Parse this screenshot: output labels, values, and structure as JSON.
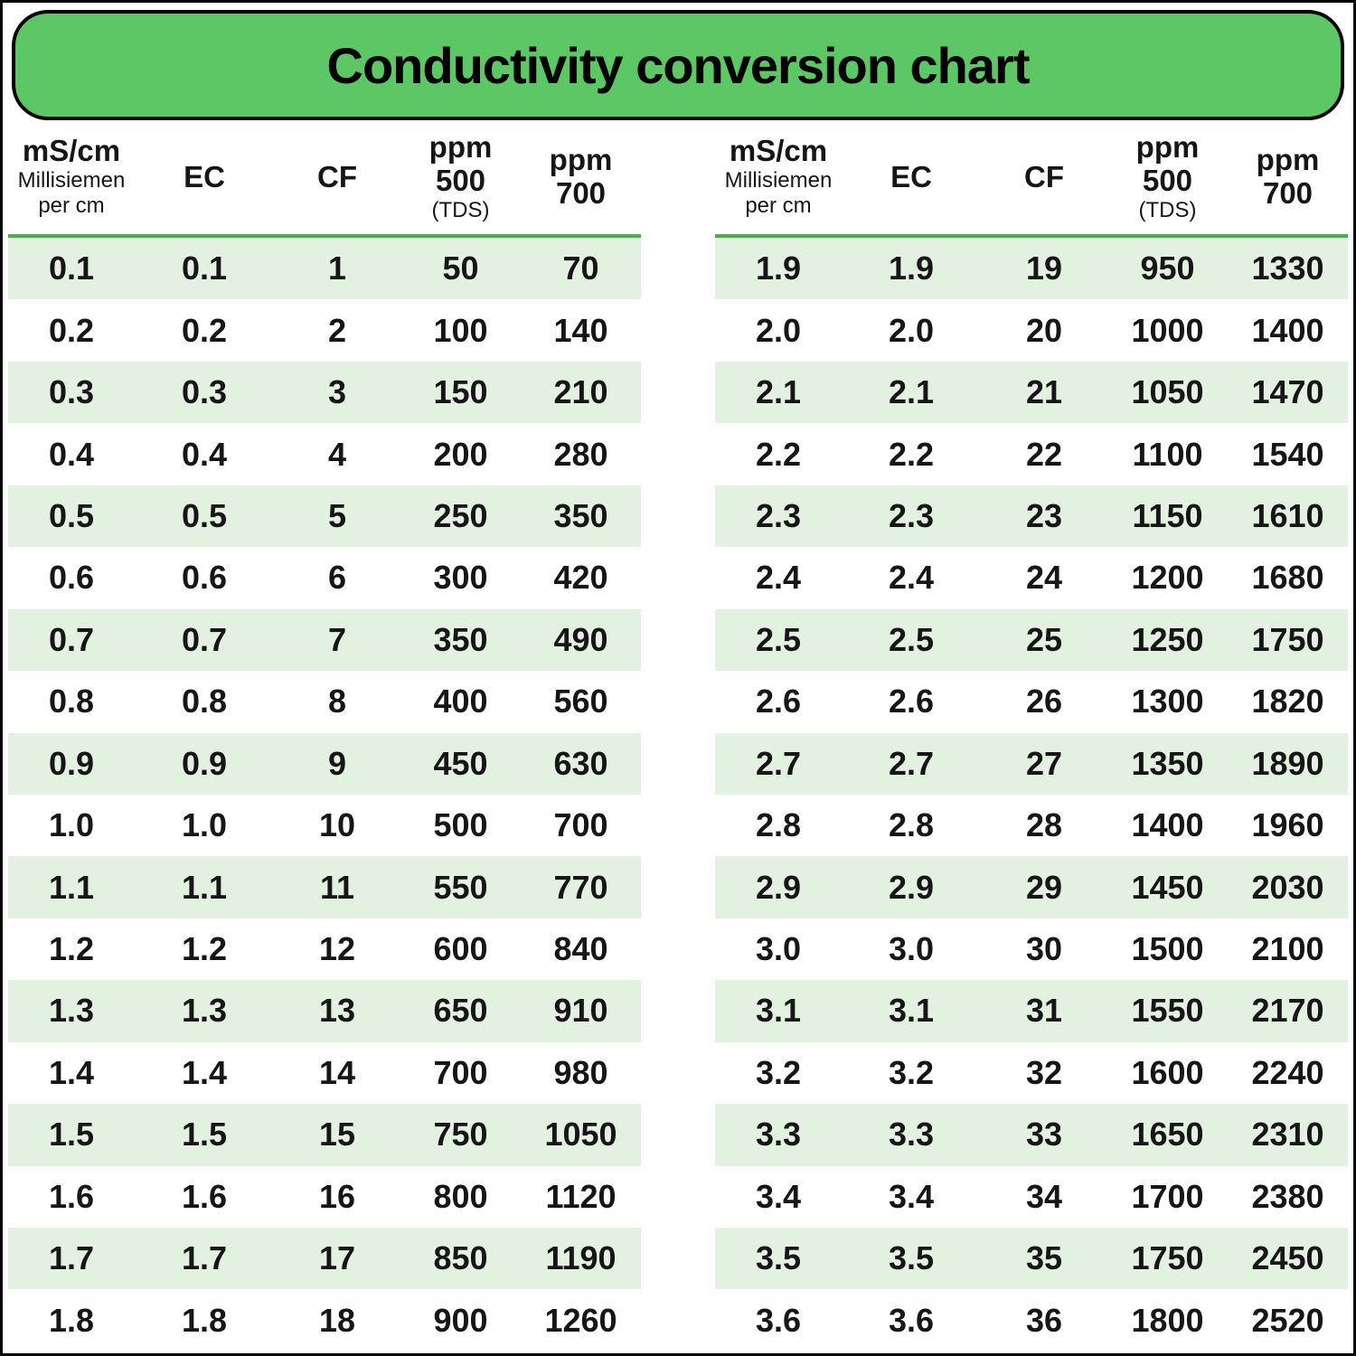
{
  "title": "Conductivity conversion chart",
  "colors": {
    "banner_green": "#5cc764",
    "divider_green": "#4caf50",
    "row_green": "#e3f1e1",
    "text": "#161616"
  },
  "header_columns": [
    {
      "bold_lines": [
        "mS/cm"
      ],
      "small_lines": [
        "Millisiemen",
        "per cm"
      ]
    },
    {
      "bold_lines": [
        "EC"
      ],
      "small_lines": []
    },
    {
      "bold_lines": [
        "CF"
      ],
      "small_lines": []
    },
    {
      "bold_lines": [
        "ppm",
        "500"
      ],
      "small_lines": [
        "(TDS)"
      ]
    },
    {
      "bold_lines": [
        "ppm",
        "700"
      ],
      "small_lines": []
    }
  ],
  "chart_data": {
    "type": "table",
    "title": "Conductivity conversion chart",
    "columns": [
      "mS/cm (Millisiemen per cm)",
      "EC",
      "CF",
      "ppm 500 (TDS)",
      "ppm 700"
    ],
    "tables": [
      {
        "rows": [
          [
            "0.1",
            "0.1",
            "1",
            "50",
            "70"
          ],
          [
            "0.2",
            "0.2",
            "2",
            "100",
            "140"
          ],
          [
            "0.3",
            "0.3",
            "3",
            "150",
            "210"
          ],
          [
            "0.4",
            "0.4",
            "4",
            "200",
            "280"
          ],
          [
            "0.5",
            "0.5",
            "5",
            "250",
            "350"
          ],
          [
            "0.6",
            "0.6",
            "6",
            "300",
            "420"
          ],
          [
            "0.7",
            "0.7",
            "7",
            "350",
            "490"
          ],
          [
            "0.8",
            "0.8",
            "8",
            "400",
            "560"
          ],
          [
            "0.9",
            "0.9",
            "9",
            "450",
            "630"
          ],
          [
            "1.0",
            "1.0",
            "10",
            "500",
            "700"
          ],
          [
            "1.1",
            "1.1",
            "11",
            "550",
            "770"
          ],
          [
            "1.2",
            "1.2",
            "12",
            "600",
            "840"
          ],
          [
            "1.3",
            "1.3",
            "13",
            "650",
            "910"
          ],
          [
            "1.4",
            "1.4",
            "14",
            "700",
            "980"
          ],
          [
            "1.5",
            "1.5",
            "15",
            "750",
            "1050"
          ],
          [
            "1.6",
            "1.6",
            "16",
            "800",
            "1120"
          ],
          [
            "1.7",
            "1.7",
            "17",
            "850",
            "1190"
          ],
          [
            "1.8",
            "1.8",
            "18",
            "900",
            "1260"
          ]
        ]
      },
      {
        "rows": [
          [
            "1.9",
            "1.9",
            "19",
            "950",
            "1330"
          ],
          [
            "2.0",
            "2.0",
            "20",
            "1000",
            "1400"
          ],
          [
            "2.1",
            "2.1",
            "21",
            "1050",
            "1470"
          ],
          [
            "2.2",
            "2.2",
            "22",
            "1100",
            "1540"
          ],
          [
            "2.3",
            "2.3",
            "23",
            "1150",
            "1610"
          ],
          [
            "2.4",
            "2.4",
            "24",
            "1200",
            "1680"
          ],
          [
            "2.5",
            "2.5",
            "25",
            "1250",
            "1750"
          ],
          [
            "2.6",
            "2.6",
            "26",
            "1300",
            "1820"
          ],
          [
            "2.7",
            "2.7",
            "27",
            "1350",
            "1890"
          ],
          [
            "2.8",
            "2.8",
            "28",
            "1400",
            "1960"
          ],
          [
            "2.9",
            "2.9",
            "29",
            "1450",
            "2030"
          ],
          [
            "3.0",
            "3.0",
            "30",
            "1500",
            "2100"
          ],
          [
            "3.1",
            "3.1",
            "31",
            "1550",
            "2170"
          ],
          [
            "3.2",
            "3.2",
            "32",
            "1600",
            "2240"
          ],
          [
            "3.3",
            "3.3",
            "33",
            "1650",
            "2310"
          ],
          [
            "3.4",
            "3.4",
            "34",
            "1700",
            "2380"
          ],
          [
            "3.5",
            "3.5",
            "35",
            "1750",
            "2450"
          ],
          [
            "3.6",
            "3.6",
            "36",
            "1800",
            "2520"
          ]
        ]
      }
    ]
  }
}
